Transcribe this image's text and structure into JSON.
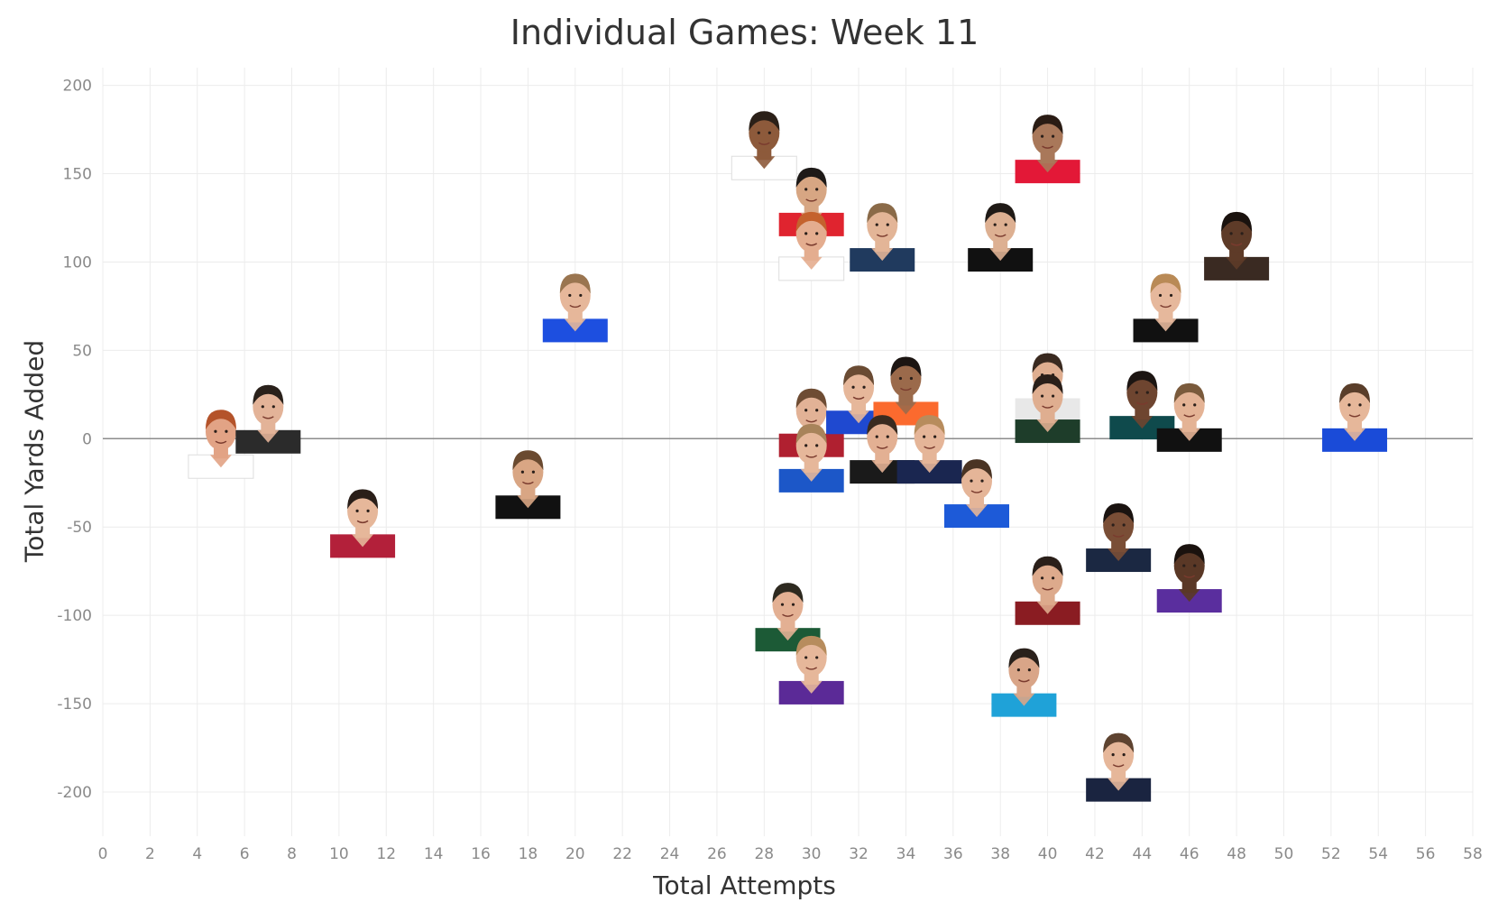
{
  "chart_data": {
    "type": "scatter",
    "title": "Individual Games: Week 11",
    "xlabel": "Total Attempts",
    "ylabel": "Total Yards Added",
    "xlim": [
      0,
      58
    ],
    "ylim": [
      -225,
      210
    ],
    "x_ticks": [
      "0",
      "2",
      "4",
      "6",
      "8",
      "10",
      "12",
      "14",
      "16",
      "18",
      "20",
      "22",
      "24",
      "26",
      "28",
      "30",
      "32",
      "34",
      "36",
      "38",
      "40",
      "42",
      "44",
      "46",
      "48",
      "50",
      "52",
      "54",
      "56",
      "58"
    ],
    "y_ticks": [
      "200",
      "150",
      "100",
      "50",
      "0",
      "-50",
      "-100",
      "-150",
      "-200"
    ],
    "grid": true,
    "zero_line": true,
    "marker": "player-headshot-icon",
    "points": [
      {
        "x": 28,
        "y": 167,
        "jersey": "#ffffff",
        "skin": "#8d5a3b",
        "hair": "#2b2018"
      },
      {
        "x": 40,
        "y": 165,
        "jersey": "#e31837",
        "skin": "#a9785a",
        "hair": "#2a1c14"
      },
      {
        "x": 30,
        "y": 135,
        "jersey": "#e0242f",
        "skin": "#d7a683",
        "hair": "#1e1a18"
      },
      {
        "x": 30,
        "y": 110,
        "jersey": "#ffffff",
        "skin": "#e4ad8f",
        "hair": "#c4622d"
      },
      {
        "x": 33,
        "y": 115,
        "jersey": "#203a5e",
        "skin": "#e3b597",
        "hair": "#8a6a48"
      },
      {
        "x": 38,
        "y": 115,
        "jersey": "#111111",
        "skin": "#ddb092",
        "hair": "#1f1a16"
      },
      {
        "x": 48,
        "y": 110,
        "jersey": "#3a2a22",
        "skin": "#5e3b28",
        "hair": "#1a120e"
      },
      {
        "x": 45,
        "y": 75,
        "jersey": "#111111",
        "skin": "#e6b89c",
        "hair": "#b98a56"
      },
      {
        "x": 20,
        "y": 75,
        "jersey": "#1d4fe0",
        "skin": "#e6b79a",
        "hair": "#9a7550"
      },
      {
        "x": 5,
        "y": -2,
        "jersey": "#ffffff",
        "skin": "#e2a385",
        "hair": "#b4532a"
      },
      {
        "x": 7,
        "y": 12,
        "jersey": "#2b2b2b",
        "skin": "#e3b398",
        "hair": "#2a211b"
      },
      {
        "x": 11,
        "y": -47,
        "jersey": "#b3203a",
        "skin": "#e6b79a",
        "hair": "#2a1f19"
      },
      {
        "x": 18,
        "y": -25,
        "jersey": "#111111",
        "skin": "#d9a684",
        "hair": "#6a4a30"
      },
      {
        "x": 30,
        "y": 10,
        "jersey": "#b02030",
        "skin": "#e2b296",
        "hair": "#6e4c33"
      },
      {
        "x": 32,
        "y": 23,
        "jersey": "#1f49d0",
        "skin": "#e6b79a",
        "hair": "#6a4b33"
      },
      {
        "x": 34,
        "y": 28,
        "jersey": "#fb6a2e",
        "skin": "#9b6a4b",
        "hair": "#1c1512"
      },
      {
        "x": 40,
        "y": 30,
        "jersey": "#e8e8e8",
        "skin": "#dfae90",
        "hair": "#3a2a20"
      },
      {
        "x": 40,
        "y": 18,
        "jersey": "#1e3d2a",
        "skin": "#dfae90",
        "hair": "#2a1f19"
      },
      {
        "x": 44,
        "y": 20,
        "jersey": "#0f4a4c",
        "skin": "#6e4530",
        "hair": "#1c1512"
      },
      {
        "x": 46,
        "y": 13,
        "jersey": "#111111",
        "skin": "#e4b395",
        "hair": "#7a5a3c"
      },
      {
        "x": 53,
        "y": 13,
        "jersey": "#1a4bd8",
        "skin": "#e6b79a",
        "hair": "#5a3e2a"
      },
      {
        "x": 30,
        "y": -10,
        "jersey": "#1c57c8",
        "skin": "#e6b79a",
        "hair": "#a8835a"
      },
      {
        "x": 33,
        "y": -5,
        "jersey": "#1a1a1a",
        "skin": "#e3b093",
        "hair": "#3a2b20"
      },
      {
        "x": 35,
        "y": -5,
        "jersey": "#1a2650",
        "skin": "#e5b598",
        "hair": "#b78c5d"
      },
      {
        "x": 37,
        "y": -30,
        "jersey": "#1d5ad8",
        "skin": "#e5b598",
        "hair": "#4a3424"
      },
      {
        "x": 43,
        "y": -55,
        "jersey": "#1b2842",
        "skin": "#7a4e36",
        "hair": "#1a1310"
      },
      {
        "x": 46,
        "y": -78,
        "jersey": "#5a2e9e",
        "skin": "#5a3826",
        "hair": "#1a120e"
      },
      {
        "x": 40,
        "y": -85,
        "jersey": "#8a1c22",
        "skin": "#ddaa8c",
        "hair": "#2a1f19"
      },
      {
        "x": 29,
        "y": -100,
        "jersey": "#1c5a36",
        "skin": "#e3b093",
        "hair": "#2e2a20"
      },
      {
        "x": 30,
        "y": -130,
        "jersey": "#5b2a97",
        "skin": "#e6b79a",
        "hair": "#b78c5d"
      },
      {
        "x": 39,
        "y": -137,
        "jersey": "#1fa2d8",
        "skin": "#d9a588",
        "hair": "#2a211b"
      },
      {
        "x": 43,
        "y": -185,
        "jersey": "#1a2440",
        "skin": "#e6b79a",
        "hair": "#5e4330"
      }
    ]
  }
}
